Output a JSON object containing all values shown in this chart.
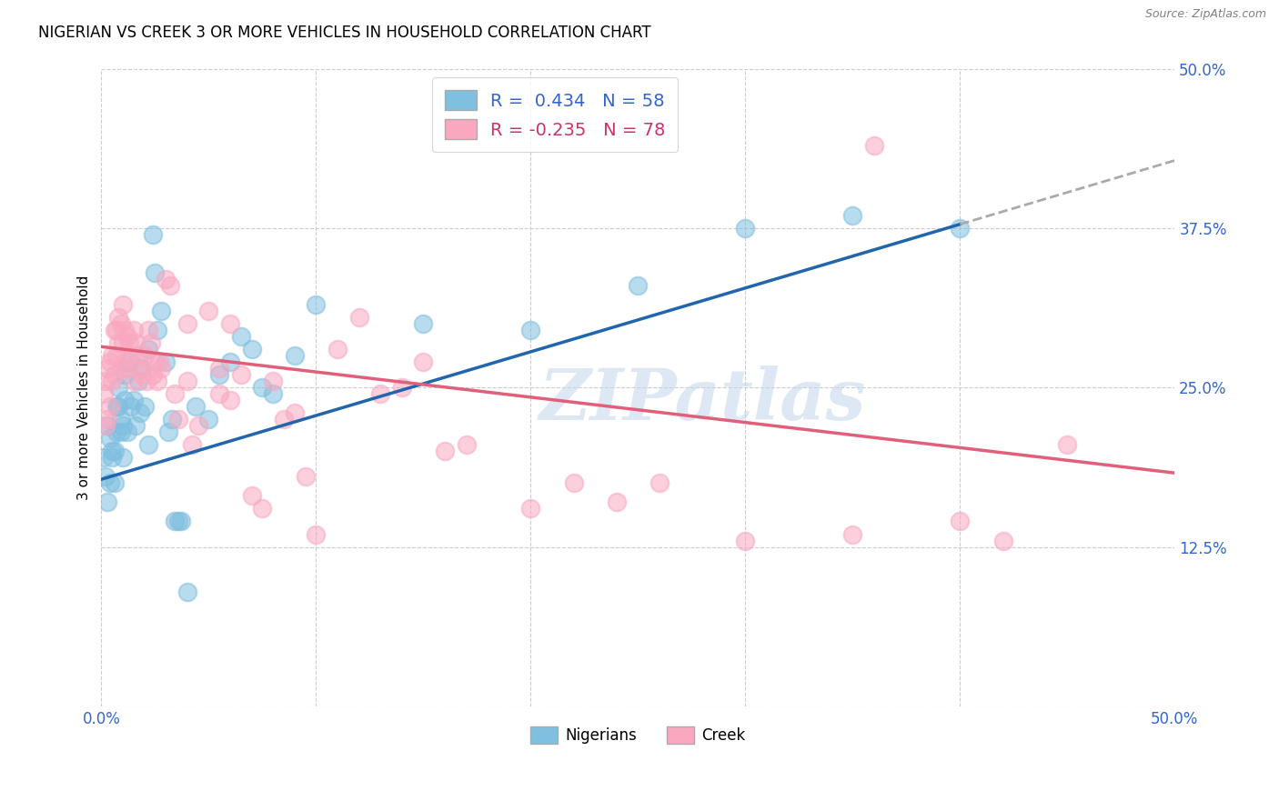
{
  "title": "NIGERIAN VS CREEK 3 OR MORE VEHICLES IN HOUSEHOLD CORRELATION CHART",
  "source": "Source: ZipAtlas.com",
  "ylabel": "3 or more Vehicles in Household",
  "xlim": [
    0.0,
    0.5
  ],
  "ylim": [
    0.0,
    0.5
  ],
  "yticks": [
    0.0,
    0.125,
    0.25,
    0.375,
    0.5
  ],
  "ytick_labels": [
    "",
    "12.5%",
    "25.0%",
    "37.5%",
    "50.0%"
  ],
  "xticks": [
    0.0,
    0.1,
    0.2,
    0.3,
    0.4,
    0.5
  ],
  "xtick_labels": [
    "0.0%",
    "",
    "",
    "",
    "",
    "50.0%"
  ],
  "nigerian_color": "#7fbfdf",
  "creek_color": "#f9a8c0",
  "nigerian_line_color": "#2166ac",
  "creek_line_color": "#e0607a",
  "nigerian_r": 0.434,
  "nigerian_n": 58,
  "creek_r": -0.235,
  "creek_n": 78,
  "watermark": "ZIPatlas",
  "nigerian_line": {
    "x0": 0.0,
    "y0": 0.178,
    "x1": 0.4,
    "y1": 0.378,
    "xdash0": 0.4,
    "ydash0": 0.378,
    "xdash1": 0.5,
    "ydash1": 0.428
  },
  "creek_line": {
    "x0": 0.0,
    "y0": 0.282,
    "x1": 0.5,
    "y1": 0.183
  },
  "nigerian_points": [
    [
      0.001,
      0.195
    ],
    [
      0.002,
      0.18
    ],
    [
      0.003,
      0.22
    ],
    [
      0.003,
      0.16
    ],
    [
      0.004,
      0.175
    ],
    [
      0.004,
      0.21
    ],
    [
      0.005,
      0.2
    ],
    [
      0.005,
      0.195
    ],
    [
      0.006,
      0.2
    ],
    [
      0.006,
      0.175
    ],
    [
      0.007,
      0.235
    ],
    [
      0.007,
      0.215
    ],
    [
      0.008,
      0.25
    ],
    [
      0.008,
      0.235
    ],
    [
      0.009,
      0.215
    ],
    [
      0.009,
      0.225
    ],
    [
      0.01,
      0.22
    ],
    [
      0.01,
      0.195
    ],
    [
      0.011,
      0.24
    ],
    [
      0.011,
      0.26
    ],
    [
      0.012,
      0.215
    ],
    [
      0.013,
      0.27
    ],
    [
      0.014,
      0.235
    ],
    [
      0.015,
      0.24
    ],
    [
      0.016,
      0.22
    ],
    [
      0.017,
      0.255
    ],
    [
      0.018,
      0.23
    ],
    [
      0.019,
      0.265
    ],
    [
      0.02,
      0.235
    ],
    [
      0.022,
      0.205
    ],
    [
      0.022,
      0.28
    ],
    [
      0.024,
      0.37
    ],
    [
      0.025,
      0.34
    ],
    [
      0.026,
      0.295
    ],
    [
      0.028,
      0.31
    ],
    [
      0.03,
      0.27
    ],
    [
      0.031,
      0.215
    ],
    [
      0.033,
      0.225
    ],
    [
      0.034,
      0.145
    ],
    [
      0.036,
      0.145
    ],
    [
      0.037,
      0.145
    ],
    [
      0.04,
      0.09
    ],
    [
      0.044,
      0.235
    ],
    [
      0.05,
      0.225
    ],
    [
      0.055,
      0.26
    ],
    [
      0.06,
      0.27
    ],
    [
      0.065,
      0.29
    ],
    [
      0.07,
      0.28
    ],
    [
      0.075,
      0.25
    ],
    [
      0.08,
      0.245
    ],
    [
      0.09,
      0.275
    ],
    [
      0.1,
      0.315
    ],
    [
      0.15,
      0.3
    ],
    [
      0.2,
      0.295
    ],
    [
      0.25,
      0.33
    ],
    [
      0.3,
      0.375
    ],
    [
      0.35,
      0.385
    ],
    [
      0.4,
      0.375
    ]
  ],
  "creek_points": [
    [
      0.001,
      0.245
    ],
    [
      0.002,
      0.255
    ],
    [
      0.002,
      0.22
    ],
    [
      0.003,
      0.265
    ],
    [
      0.003,
      0.225
    ],
    [
      0.004,
      0.27
    ],
    [
      0.004,
      0.235
    ],
    [
      0.005,
      0.275
    ],
    [
      0.005,
      0.255
    ],
    [
      0.006,
      0.295
    ],
    [
      0.006,
      0.26
    ],
    [
      0.007,
      0.295
    ],
    [
      0.007,
      0.275
    ],
    [
      0.008,
      0.305
    ],
    [
      0.008,
      0.285
    ],
    [
      0.009,
      0.3
    ],
    [
      0.009,
      0.265
    ],
    [
      0.01,
      0.315
    ],
    [
      0.01,
      0.285
    ],
    [
      0.011,
      0.295
    ],
    [
      0.011,
      0.27
    ],
    [
      0.012,
      0.29
    ],
    [
      0.012,
      0.265
    ],
    [
      0.013,
      0.285
    ],
    [
      0.014,
      0.275
    ],
    [
      0.015,
      0.295
    ],
    [
      0.015,
      0.255
    ],
    [
      0.016,
      0.285
    ],
    [
      0.017,
      0.275
    ],
    [
      0.018,
      0.265
    ],
    [
      0.019,
      0.26
    ],
    [
      0.02,
      0.275
    ],
    [
      0.021,
      0.255
    ],
    [
      0.022,
      0.295
    ],
    [
      0.023,
      0.285
    ],
    [
      0.024,
      0.26
    ],
    [
      0.025,
      0.27
    ],
    [
      0.026,
      0.255
    ],
    [
      0.027,
      0.27
    ],
    [
      0.028,
      0.265
    ],
    [
      0.03,
      0.335
    ],
    [
      0.032,
      0.33
    ],
    [
      0.034,
      0.245
    ],
    [
      0.036,
      0.225
    ],
    [
      0.04,
      0.3
    ],
    [
      0.04,
      0.255
    ],
    [
      0.042,
      0.205
    ],
    [
      0.045,
      0.22
    ],
    [
      0.05,
      0.31
    ],
    [
      0.055,
      0.265
    ],
    [
      0.055,
      0.245
    ],
    [
      0.06,
      0.3
    ],
    [
      0.06,
      0.24
    ],
    [
      0.065,
      0.26
    ],
    [
      0.07,
      0.165
    ],
    [
      0.075,
      0.155
    ],
    [
      0.08,
      0.255
    ],
    [
      0.085,
      0.225
    ],
    [
      0.09,
      0.23
    ],
    [
      0.095,
      0.18
    ],
    [
      0.1,
      0.135
    ],
    [
      0.11,
      0.28
    ],
    [
      0.12,
      0.305
    ],
    [
      0.13,
      0.245
    ],
    [
      0.14,
      0.25
    ],
    [
      0.15,
      0.27
    ],
    [
      0.16,
      0.2
    ],
    [
      0.17,
      0.205
    ],
    [
      0.2,
      0.155
    ],
    [
      0.22,
      0.175
    ],
    [
      0.24,
      0.16
    ],
    [
      0.26,
      0.175
    ],
    [
      0.3,
      0.13
    ],
    [
      0.35,
      0.135
    ],
    [
      0.36,
      0.44
    ],
    [
      0.4,
      0.145
    ],
    [
      0.42,
      0.13
    ],
    [
      0.45,
      0.205
    ]
  ]
}
